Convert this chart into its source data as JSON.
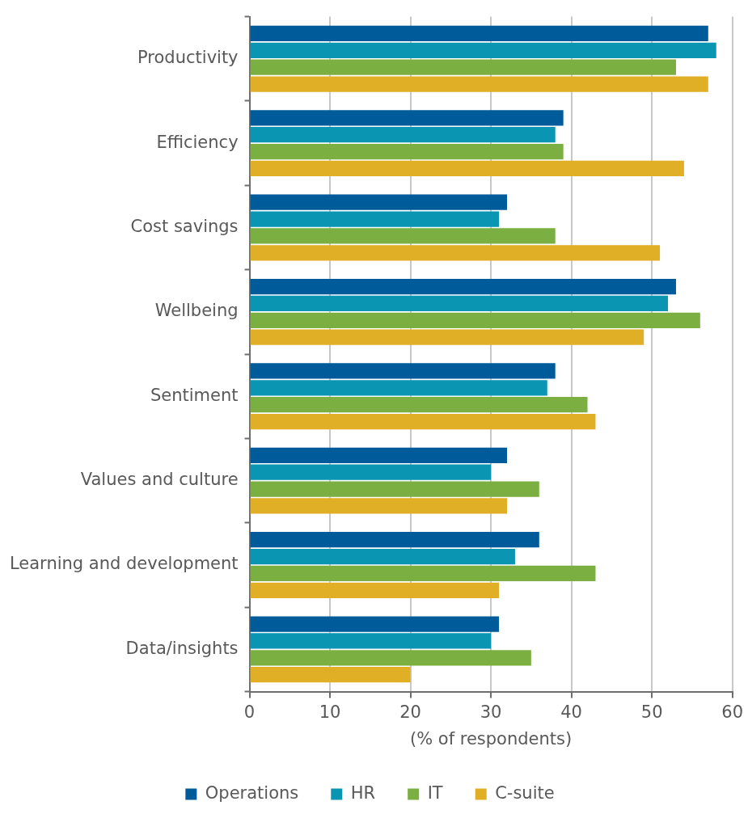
{
  "chart_data": {
    "type": "bar",
    "orientation": "horizontal",
    "xlabel": "(% of respondents)",
    "categories": [
      "Productivity",
      "Efficiency",
      "Cost savings",
      "Wellbeing",
      "Sentiment",
      "Values and culture",
      "Learning and development",
      "Data/insights"
    ],
    "series": [
      {
        "name": "Operations",
        "color": "#005b9a",
        "values": [
          57,
          39,
          32,
          53,
          38,
          32,
          36,
          31
        ]
      },
      {
        "name": "HR",
        "color": "#0a95b2",
        "values": [
          58,
          38,
          31,
          52,
          37,
          30,
          33,
          30
        ]
      },
      {
        "name": "IT",
        "color": "#7caf42",
        "values": [
          53,
          39,
          38,
          56,
          42,
          36,
          43,
          35
        ]
      },
      {
        "name": "C-suite",
        "color": "#e1af25",
        "values": [
          57,
          54,
          51,
          49,
          43,
          32,
          31,
          20
        ]
      }
    ],
    "xlim": [
      0,
      60
    ],
    "xticks": [
      0,
      10,
      20,
      30,
      40,
      50,
      60
    ],
    "grid": "x",
    "legend": "bottom"
  }
}
